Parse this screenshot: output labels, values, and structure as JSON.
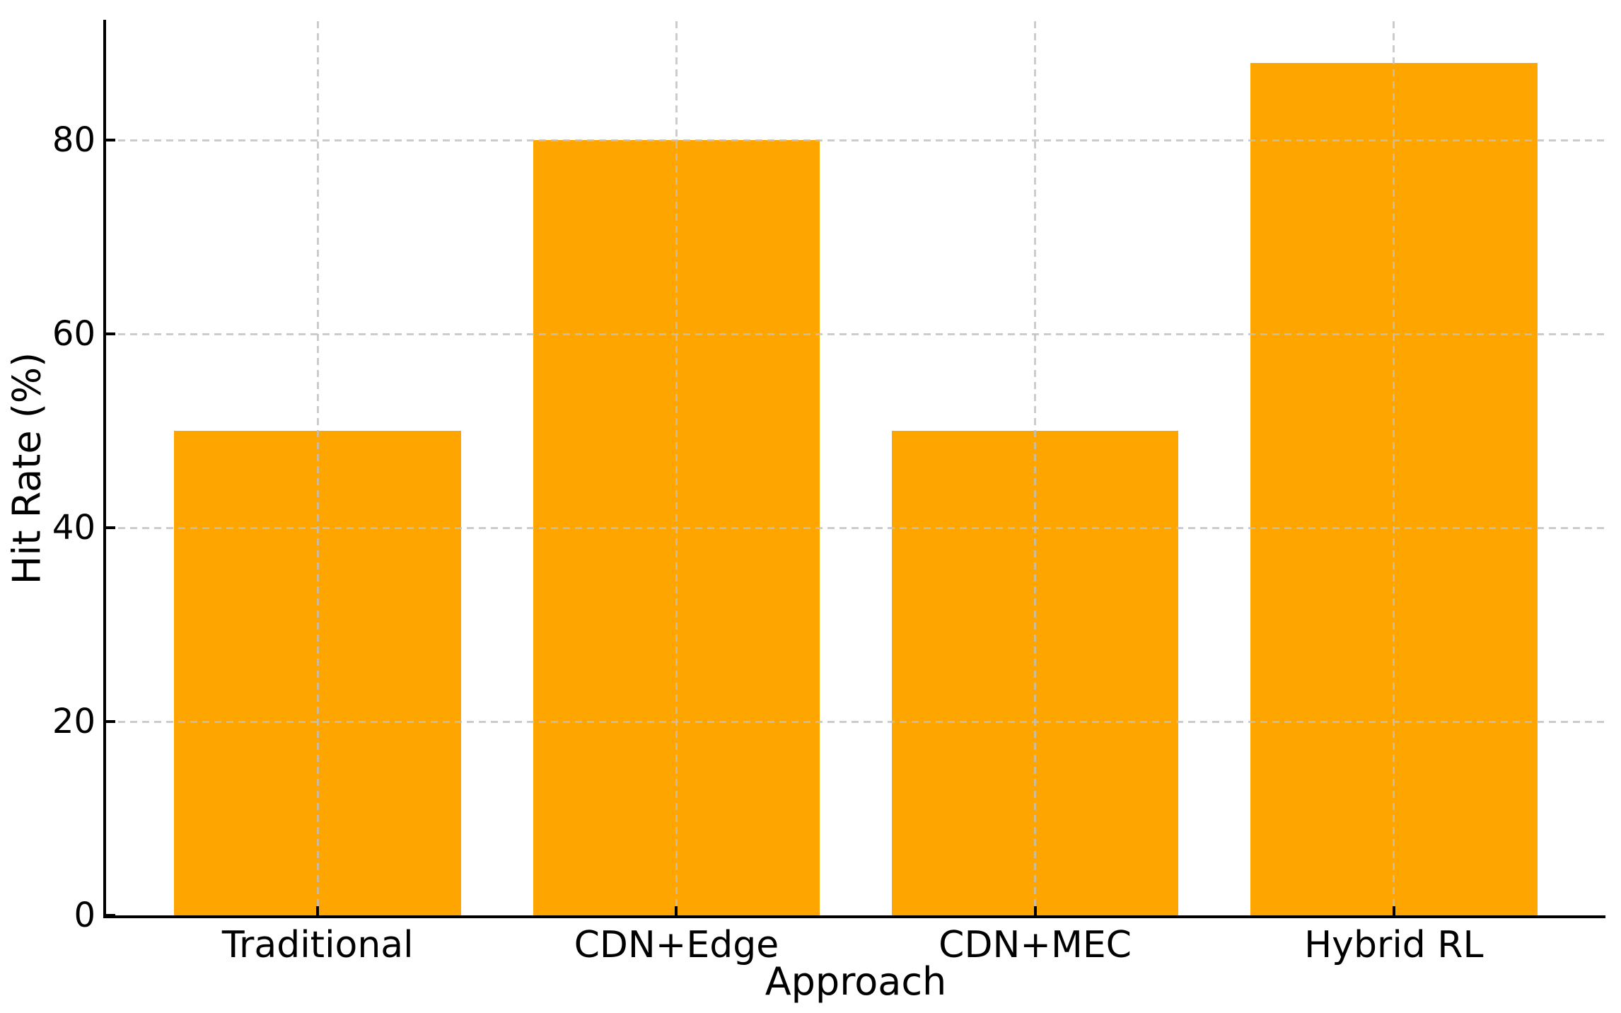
{
  "chart_data": {
    "type": "bar",
    "title": "",
    "categories": [
      "Traditional",
      "CDN+Edge",
      "CDN+MEC",
      "Hybrid RL"
    ],
    "values": [
      50,
      80,
      50,
      88
    ],
    "xlabel": "Approach",
    "ylabel": "Hit Rate (%)",
    "yticks": [
      0,
      20,
      40,
      60,
      80
    ],
    "ylim": [
      0,
      92.3
    ],
    "xlim": [
      -0.59,
      3.59
    ],
    "bar_width_fraction": 0.8,
    "bar_color": "#FFA500",
    "grid": "dashed, horizontal at yticks and vertical at bar centers, drawn above bars",
    "grid_color": "rgba(192,192,192,0.8)",
    "axis_color": "#000000",
    "background": "#ffffff",
    "legend": "none"
  }
}
